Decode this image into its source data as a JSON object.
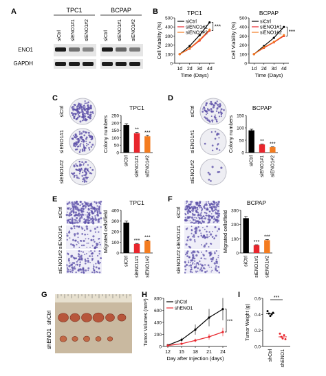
{
  "panels": {
    "A": {
      "letter": "A",
      "groups": [
        "TPC1",
        "BCPAP"
      ],
      "lanes": [
        "siCtrl",
        "siENO1#1",
        "siENO1#2",
        "siCtrl",
        "siENO1#1",
        "siENO1#2"
      ],
      "bands": [
        "ENO1",
        "GAPDH"
      ],
      "eno1_intensity": [
        0.95,
        0.55,
        0.45,
        0.95,
        0.6,
        0.5
      ]
    },
    "B": {
      "letter": "B"
    },
    "C": {
      "letter": "C",
      "rows": [
        "siCtrl",
        "siENO1#1",
        "siENO1#2"
      ]
    },
    "D": {
      "letter": "D",
      "rows": [
        "siCtrl",
        "siENO1#1",
        "siENO1#2"
      ]
    },
    "E": {
      "letter": "E",
      "rows": [
        "siCtrl",
        "siENO1#1",
        "siENO1#2"
      ]
    },
    "F": {
      "letter": "F",
      "rows": [
        "siCtrl",
        "siENO1#1",
        "siENO1#2"
      ]
    },
    "G": {
      "letter": "G",
      "rows": [
        "shCtrl",
        "shENO1"
      ]
    },
    "H": {
      "letter": "H"
    },
    "I": {
      "letter": "I"
    }
  },
  "colors": {
    "ctrl": "#000000",
    "kd1": "#e8262d",
    "kd2": "#f47c20",
    "stain": "#5b4fa8"
  },
  "chart_data": [
    {
      "id": "B1",
      "type": "line",
      "title": "TPC1",
      "xlabel": "Time (Days)",
      "ylabel": "Cell Viability (%)",
      "x": [
        "1d",
        "2d",
        "3d",
        "4d"
      ],
      "yticks": [
        "0",
        "100",
        "200",
        "300",
        "400",
        "500"
      ],
      "ylim": [
        0,
        500
      ],
      "legend_position": "top-left",
      "series": [
        {
          "name": "siCtrl",
          "values": [
            100,
            190,
            310,
            450
          ],
          "color": "#000000"
        },
        {
          "name": "siENO1#1",
          "values": [
            100,
            160,
            250,
            360
          ],
          "color": "#e8262d"
        },
        {
          "name": "siENO1#2",
          "values": [
            100,
            165,
            260,
            370
          ],
          "color": "#f47c20"
        }
      ],
      "annotation": "***"
    },
    {
      "id": "B2",
      "type": "line",
      "title": "BCPAP",
      "xlabel": "Time (Days)",
      "ylabel": "Cell Viability (%)",
      "x": [
        "1d",
        "2d",
        "3d",
        "4d"
      ],
      "yticks": [
        "0",
        "100",
        "200",
        "300",
        "400",
        "500"
      ],
      "ylim": [
        0,
        500
      ],
      "legend_position": "top-left",
      "series": [
        {
          "name": "siCtrl",
          "values": [
            100,
            190,
            280,
            400
          ],
          "color": "#000000"
        },
        {
          "name": "siENO1#1",
          "values": [
            100,
            170,
            230,
            300
          ],
          "color": "#e8262d"
        },
        {
          "name": "siENO1#2",
          "values": [
            100,
            175,
            235,
            310
          ],
          "color": "#f47c20"
        }
      ],
      "annotation": "***"
    },
    {
      "id": "C",
      "type": "bar",
      "title": "TPC1",
      "ylabel": "Colony numbers",
      "categories": [
        "siCtrl",
        "siENO1#1",
        "siENO1#2"
      ],
      "values": [
        185,
        130,
        110
      ],
      "colors": [
        "#000000",
        "#e8262d",
        "#f47c20"
      ],
      "ylim": [
        0,
        250
      ],
      "yticks": [
        "0",
        "50",
        "100",
        "150",
        "200",
        "250"
      ],
      "annotations": [
        "",
        "**",
        "***"
      ]
    },
    {
      "id": "D",
      "type": "bar",
      "title": "BCPAP",
      "ylabel": "Colony numbers",
      "categories": [
        "siCtrl",
        "siENO1#1",
        "siENO1#2"
      ],
      "values": [
        90,
        33,
        22
      ],
      "colors": [
        "#000000",
        "#e8262d",
        "#f47c20"
      ],
      "ylim": [
        0,
        150
      ],
      "yticks": [
        "0",
        "50",
        "100",
        "150"
      ],
      "annotations": [
        "",
        "**",
        "***"
      ]
    },
    {
      "id": "E",
      "type": "bar",
      "title": "TPC1",
      "ylabel": "Migrated cells/field",
      "categories": [
        "siCtrl",
        "siENO1#1",
        "siENO1#2"
      ],
      "values": [
        285,
        85,
        115
      ],
      "colors": [
        "#000000",
        "#e8262d",
        "#f47c20"
      ],
      "ylim": [
        0,
        400
      ],
      "yticks": [
        "0",
        "100",
        "200",
        "300",
        "400"
      ],
      "annotations": [
        "",
        "***",
        "***"
      ]
    },
    {
      "id": "F",
      "type": "bar",
      "title": "BCPAP",
      "ylabel": "Migrated cells/field",
      "categories": [
        "siCtrl",
        "siENO1#1",
        "siENO1#2"
      ],
      "values": [
        245,
        55,
        90
      ],
      "colors": [
        "#000000",
        "#e8262d",
        "#f47c20"
      ],
      "ylim": [
        0,
        300
      ],
      "yticks": [
        "0",
        "100",
        "200",
        "300"
      ],
      "annotations": [
        "",
        "***",
        "***"
      ]
    },
    {
      "id": "H",
      "type": "line",
      "title": "",
      "xlabel": "Day after Injection (days)",
      "ylabel": "Tumor Volumes (mm³)",
      "x": [
        "12",
        "15",
        "18",
        "21",
        "24"
      ],
      "yticks": [
        "0",
        "200",
        "400",
        "600",
        "800"
      ],
      "ylim": [
        0,
        800
      ],
      "legend_position": "top-left",
      "series": [
        {
          "name": "shCtrl",
          "values": [
            20,
            110,
            280,
            480,
            620
          ],
          "color": "#000000"
        },
        {
          "name": "shENO1",
          "values": [
            15,
            45,
            100,
            160,
            240
          ],
          "color": "#e8262d"
        }
      ],
      "annotation": "***"
    },
    {
      "id": "I",
      "type": "scatter",
      "title": "",
      "ylabel": "Tumor Weight (g)",
      "categories": [
        "shCtrl",
        "shENO1"
      ],
      "yticks": [
        "0.0",
        "0.2",
        "0.4",
        "0.6"
      ],
      "ylim": [
        0,
        0.6
      ],
      "points": [
        [
          0.44,
          0.41,
          0.38,
          0.4,
          0.42
        ],
        [
          0.16,
          0.12,
          0.1,
          0.14,
          0.09
        ]
      ],
      "means": [
        0.41,
        0.12
      ],
      "colors": [
        "#000000",
        "#e8262d"
      ],
      "annotation": "***"
    }
  ]
}
